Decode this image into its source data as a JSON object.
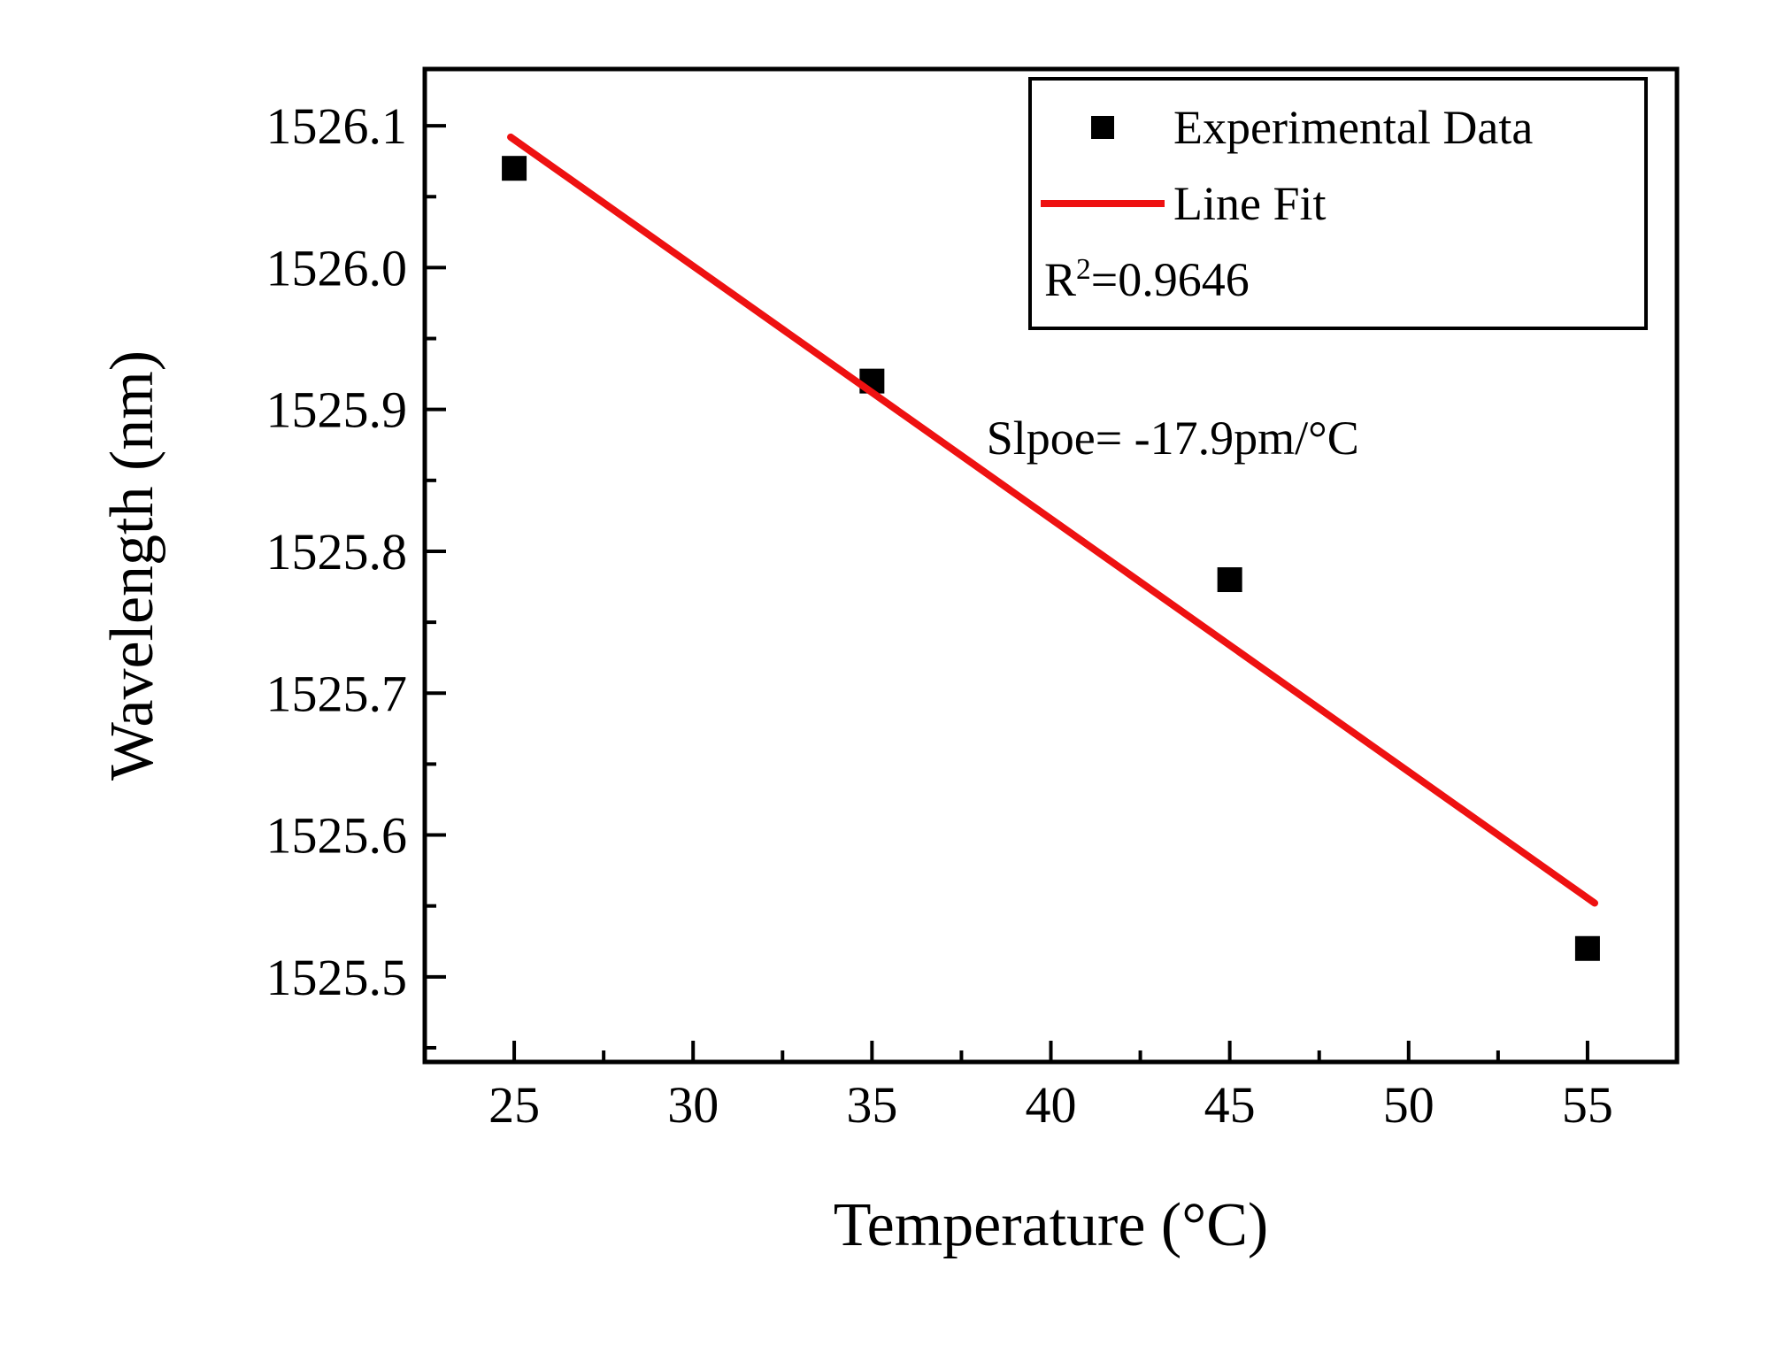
{
  "figure": {
    "background": "#ffffff",
    "frame_color": "#000000"
  },
  "chart_data": {
    "type": "scatter",
    "title": "",
    "xlabel": "Temperature (°C)",
    "ylabel": "Wavelength (nm)",
    "xlim": [
      22.5,
      57.5
    ],
    "ylim": [
      1525.44,
      1526.14
    ],
    "x_ticks": [
      25,
      30,
      35,
      40,
      45,
      50,
      55
    ],
    "x_tick_labels": [
      "25",
      "30",
      "35",
      "40",
      "45",
      "50",
      "55"
    ],
    "y_ticks": [
      1525.5,
      1525.6,
      1525.7,
      1525.8,
      1525.9,
      1526.0,
      1526.1
    ],
    "y_tick_labels": [
      "1525.5",
      "1525.6",
      "1525.7",
      "1525.8",
      "1525.9",
      "1526.0",
      "1526.1"
    ],
    "grid": false,
    "legend_position": "top-right",
    "series": [
      {
        "name": "Experimental Data",
        "plot_type": "scatter",
        "marker": "square",
        "color": "#000000",
        "x": [
          25,
          35,
          45,
          55
        ],
        "y": [
          1526.07,
          1525.92,
          1525.78,
          1525.52
        ]
      },
      {
        "name": "Line Fit",
        "plot_type": "line",
        "color": "#ee1111",
        "x": [
          24.9,
          55.2
        ],
        "y": [
          1526.092,
          1525.552
        ]
      }
    ],
    "legend": {
      "entry_experimental": "Experimental Data",
      "entry_linefit": "Line Fit",
      "r2_base": "R",
      "r2_sup": "2",
      "r2_rest": "=0.9646"
    },
    "annotations": [
      {
        "text": "Slpoe= -17.9pm/°C",
        "x": 38.2,
        "y": 1525.868
      }
    ]
  }
}
